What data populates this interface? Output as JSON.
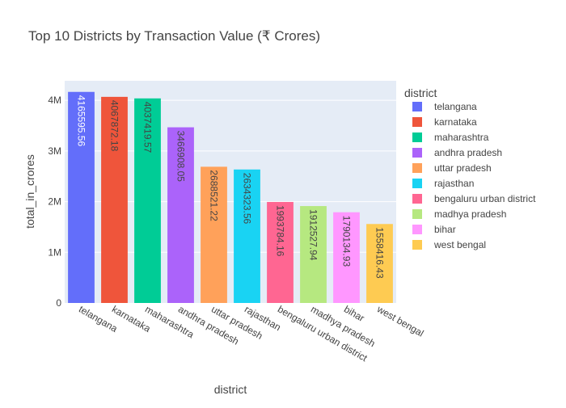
{
  "chart_data": {
    "type": "bar",
    "title": "Top 10 Districts by Transaction Value (₹ Crores)",
    "xlabel": "district",
    "ylabel": "total_in_crores",
    "legend_title": "district",
    "legend_placement": "right",
    "grid": true,
    "ylim": [
      0,
      4384837
    ],
    "y_ticks": [
      0,
      1000000,
      2000000,
      3000000,
      4000000
    ],
    "y_tick_labels": [
      "0",
      "1M",
      "2M",
      "3M",
      "4M"
    ],
    "categories": [
      "telangana",
      "karnataka",
      "maharashtra",
      "andhra pradesh",
      "uttar pradesh",
      "rajasthan",
      "bengaluru urban district",
      "madhya pradesh",
      "bihar",
      "west bengal"
    ],
    "values": [
      4165595.56,
      4067872.18,
      4037419.57,
      3466908.05,
      2688521.22,
      2634323.56,
      1993784.16,
      1912527.94,
      1790134.93,
      1558416.43
    ],
    "value_labels": [
      "4165595.56",
      "4067872.18",
      "4037419.57",
      "3466908.05",
      "2688521.22",
      "2634323.56",
      "1993784.16",
      "1912527.94",
      "1790134.93",
      "1558416.43"
    ],
    "colors": [
      "#636efa",
      "#EF553B",
      "#00cc96",
      "#ab63fa",
      "#FFA15A",
      "#19d3f3",
      "#FF6692",
      "#B6E880",
      "#FF97FF",
      "#FECB52"
    ],
    "label_colors": [
      "#ffffff",
      "#444444",
      "#444444",
      "#444444",
      "#444444",
      "#444444",
      "#444444",
      "#444444",
      "#444444",
      "#444444"
    ],
    "plot_background": "#e5ecf6"
  }
}
